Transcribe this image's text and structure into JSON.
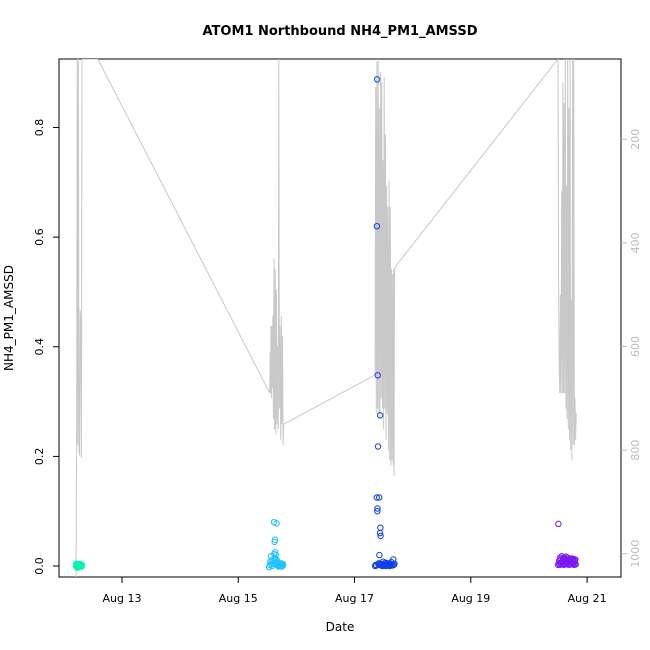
{
  "chart_data": {
    "type": "scatter",
    "title": "ATOM1 Northbound NH4_PM1_AMSSD",
    "xlabel": "Date",
    "ylabel": "NH4_PM1_AMSSD",
    "xlim": [
      "2018-08-11T22:00",
      "2018-08-21T14:00"
    ],
    "ylim": [
      -0.02,
      0.925
    ],
    "y2lim": [
      1045,
      45
    ],
    "x_ticks": [
      {
        "date": "2018-08-13T00:00",
        "label": "Aug 13"
      },
      {
        "date": "2018-08-15T00:00",
        "label": "Aug 15"
      },
      {
        "date": "2018-08-17T00:00",
        "label": "Aug 17"
      },
      {
        "date": "2018-08-19T00:00",
        "label": "Aug 19"
      },
      {
        "date": "2018-08-21T00:00",
        "label": "Aug 21"
      }
    ],
    "y_ticks": [
      "0.0",
      "0.2",
      "0.4",
      "0.6",
      "0.8"
    ],
    "y2_ticks": [
      "200",
      "400",
      "600",
      "800",
      "1000"
    ],
    "grid": false,
    "legend": "none",
    "colors": {
      "altitude_line": "#c8c8c8",
      "seg1": "#00f5b5",
      "seg2": "#1ec3ff",
      "seg3": "#1040ea",
      "seg4": "#7a18f0",
      "axis": "#000000",
      "right_axis": "#bbbbbb"
    },
    "altitude_trace": [
      [
        "2018-08-12T05:00",
        1045
      ],
      [
        "2018-08-12T05:15",
        795
      ],
      [
        "2018-08-12T05:30",
        45
      ],
      [
        "2018-08-12T05:45",
        790
      ],
      [
        "2018-08-12T06:00",
        45
      ],
      [
        "2018-08-12T06:15",
        800
      ],
      [
        "2018-08-12T06:30",
        810
      ],
      [
        "2018-08-12T06:45",
        530
      ],
      [
        "2018-08-12T07:00",
        560
      ],
      [
        "2018-08-12T07:15",
        815
      ],
      [
        "2018-08-12T07:30",
        45
      ],
      [
        "2018-08-12T07:45",
        45
      ],
      [
        "2018-08-12T14:00",
        45
      ],
      [
        "2018-08-15T13:00",
        690
      ],
      [
        "2018-08-15T13:10",
        610
      ],
      [
        "2018-08-15T13:20",
        690
      ],
      [
        "2018-08-15T13:30",
        560
      ],
      [
        "2018-08-15T13:40",
        700
      ],
      [
        "2018-08-15T13:50",
        560
      ],
      [
        "2018-08-15T14:00",
        680
      ],
      [
        "2018-08-15T14:15",
        540
      ],
      [
        "2018-08-15T14:30",
        740
      ],
      [
        "2018-08-15T14:45",
        430
      ],
      [
        "2018-08-15T15:00",
        760
      ],
      [
        "2018-08-15T15:15",
        450
      ],
      [
        "2018-08-15T15:30",
        770
      ],
      [
        "2018-08-15T15:45",
        490
      ],
      [
        "2018-08-15T16:00",
        750
      ],
      [
        "2018-08-15T16:15",
        600
      ],
      [
        "2018-08-15T16:30",
        760
      ],
      [
        "2018-08-15T16:45",
        45
      ],
      [
        "2018-08-15T17:00",
        720
      ],
      [
        "2018-08-15T17:15",
        560
      ],
      [
        "2018-08-15T17:30",
        780
      ],
      [
        "2018-08-15T17:45",
        540
      ],
      [
        "2018-08-15T18:00",
        750
      ],
      [
        "2018-08-15T18:15",
        580
      ],
      [
        "2018-08-15T18:30",
        790
      ],
      [
        "2018-08-15T18:45",
        750
      ],
      [
        "2018-08-17T08:30",
        655
      ],
      [
        "2018-08-17T08:45",
        100
      ],
      [
        "2018-08-17T09:00",
        730
      ],
      [
        "2018-08-17T09:15",
        50
      ],
      [
        "2018-08-17T09:30",
        720
      ],
      [
        "2018-08-17T09:45",
        45
      ],
      [
        "2018-08-17T10:00",
        730
      ],
      [
        "2018-08-17T10:15",
        140
      ],
      [
        "2018-08-17T10:30",
        740
      ],
      [
        "2018-08-17T10:45",
        70
      ],
      [
        "2018-08-17T11:00",
        700
      ],
      [
        "2018-08-17T11:15",
        90
      ],
      [
        "2018-08-17T11:30",
        720
      ],
      [
        "2018-08-17T11:45",
        240
      ],
      [
        "2018-08-17T12:00",
        760
      ],
      [
        "2018-08-17T12:15",
        80
      ],
      [
        "2018-08-17T12:30",
        720
      ],
      [
        "2018-08-17T12:45",
        190
      ],
      [
        "2018-08-17T13:00",
        780
      ],
      [
        "2018-08-17T13:15",
        290
      ],
      [
        "2018-08-17T13:30",
        730
      ],
      [
        "2018-08-17T13:45",
        330
      ],
      [
        "2018-08-17T14:00",
        800
      ],
      [
        "2018-08-17T14:15",
        280
      ],
      [
        "2018-08-17T14:30",
        820
      ],
      [
        "2018-08-17T14:45",
        330
      ],
      [
        "2018-08-17T15:00",
        830
      ],
      [
        "2018-08-17T15:15",
        450
      ],
      [
        "2018-08-17T15:30",
        820
      ],
      [
        "2018-08-17T15:45",
        460
      ],
      [
        "2018-08-17T16:00",
        830
      ],
      [
        "2018-08-17T16:10",
        450
      ],
      [
        "2018-08-17T16:20",
        850
      ],
      [
        "2018-08-17T16:30",
        450
      ],
      [
        "2018-08-17T17:00",
        445
      ],
      [
        "2018-08-20T12:00",
        45
      ],
      [
        "2018-08-20T12:15",
        480
      ],
      [
        "2018-08-20T12:30",
        640
      ],
      [
        "2018-08-20T12:45",
        690
      ],
      [
        "2018-08-20T13:00",
        500
      ],
      [
        "2018-08-20T13:15",
        690
      ],
      [
        "2018-08-20T13:30",
        300
      ],
      [
        "2018-08-20T13:45",
        690
      ],
      [
        "2018-08-20T14:00",
        90
      ],
      [
        "2018-08-20T14:15",
        690
      ],
      [
        "2018-08-20T14:30",
        130
      ],
      [
        "2018-08-20T14:45",
        690
      ],
      [
        "2018-08-20T15:00",
        45
      ],
      [
        "2018-08-20T15:15",
        720
      ],
      [
        "2018-08-20T15:30",
        290
      ],
      [
        "2018-08-20T15:45",
        740
      ],
      [
        "2018-08-20T16:00",
        45
      ],
      [
        "2018-08-20T16:15",
        760
      ],
      [
        "2018-08-20T16:30",
        140
      ],
      [
        "2018-08-20T16:45",
        780
      ],
      [
        "2018-08-20T17:00",
        45
      ],
      [
        "2018-08-20T17:15",
        800
      ],
      [
        "2018-08-20T17:30",
        510
      ],
      [
        "2018-08-20T17:45",
        820
      ],
      [
        "2018-08-20T18:00",
        45
      ],
      [
        "2018-08-20T18:15",
        790
      ],
      [
        "2018-08-20T18:30",
        45
      ],
      [
        "2018-08-20T18:45",
        790
      ],
      [
        "2018-08-20T19:00",
        700
      ],
      [
        "2018-08-20T19:15",
        780
      ],
      [
        "2018-08-20T19:30",
        730
      ]
    ],
    "series": [
      {
        "color": "#00f5b5",
        "points": [
          [
            "2018-08-12T05:00",
            0.0
          ],
          [
            "2018-08-12T05:10",
            0.002
          ],
          [
            "2018-08-12T05:20",
            -0.001
          ],
          [
            "2018-08-12T05:30",
            0.003
          ],
          [
            "2018-08-12T05:40",
            0.001
          ],
          [
            "2018-08-12T05:50",
            -0.002
          ],
          [
            "2018-08-12T06:00",
            0.002
          ],
          [
            "2018-08-12T06:10",
            0.0
          ],
          [
            "2018-08-12T06:20",
            0.003
          ],
          [
            "2018-08-12T06:30",
            0.001
          ],
          [
            "2018-08-12T06:40",
            -0.001
          ],
          [
            "2018-08-12T06:50",
            0.002
          ],
          [
            "2018-08-12T07:00",
            0.0
          ],
          [
            "2018-08-12T07:10",
            0.001
          ],
          [
            "2018-08-12T07:20",
            -0.001
          ],
          [
            "2018-08-12T07:30",
            0.002
          ],
          [
            "2018-08-12T05:05",
            0.004
          ],
          [
            "2018-08-12T06:45",
            0.004
          ],
          [
            "2018-08-12T05:35",
            -0.003
          ],
          [
            "2018-08-12T06:15",
            -0.002
          ]
        ]
      },
      {
        "color": "#1ec3ff",
        "points": [
          [
            "2018-08-15T12:45",
            -0.002
          ],
          [
            "2018-08-15T13:00",
            0.002
          ],
          [
            "2018-08-15T13:15",
            0.008
          ],
          [
            "2018-08-15T13:30",
            0.018
          ],
          [
            "2018-08-15T13:45",
            0.003
          ],
          [
            "2018-08-15T14:00",
            0.0
          ],
          [
            "2018-08-15T14:15",
            0.005
          ],
          [
            "2018-08-15T14:30",
            0.012
          ],
          [
            "2018-08-15T14:45",
            0.08
          ],
          [
            "2018-08-15T15:00",
            0.044
          ],
          [
            "2018-08-15T15:10",
            0.048
          ],
          [
            "2018-08-15T15:15",
            0.025
          ],
          [
            "2018-08-15T15:20",
            0.012
          ],
          [
            "2018-08-15T15:30",
            0.02
          ],
          [
            "2018-08-15T15:40",
            0.006
          ],
          [
            "2018-08-15T15:45",
            0.002
          ],
          [
            "2018-08-15T15:50",
            0.078
          ],
          [
            "2018-08-15T16:00",
            0.01
          ],
          [
            "2018-08-15T16:10",
            0.003
          ],
          [
            "2018-08-15T16:20",
            0.001
          ],
          [
            "2018-08-15T16:30",
            0.006
          ],
          [
            "2018-08-15T16:40",
            -0.001
          ],
          [
            "2018-08-15T16:50",
            0.002
          ],
          [
            "2018-08-15T17:00",
            0.004
          ],
          [
            "2018-08-15T17:10",
            0.0
          ],
          [
            "2018-08-15T17:20",
            0.003
          ],
          [
            "2018-08-15T17:30",
            0.001
          ],
          [
            "2018-08-15T17:40",
            0.005
          ],
          [
            "2018-08-15T17:50",
            -0.001
          ],
          [
            "2018-08-15T18:00",
            0.002
          ],
          [
            "2018-08-15T18:10",
            0.004
          ],
          [
            "2018-08-15T18:20",
            0.0
          ],
          [
            "2018-08-15T18:30",
            0.003
          ],
          [
            "2018-08-15T15:05",
            0.015
          ],
          [
            "2018-08-15T14:50",
            0.022
          ],
          [
            "2018-08-15T13:50",
            0.01
          ]
        ]
      },
      {
        "color": "#1040ea",
        "points": [
          [
            "2018-08-17T08:30",
            0.0
          ],
          [
            "2018-08-17T08:45",
            0.002
          ],
          [
            "2018-08-17T09:00",
            0.001
          ],
          [
            "2018-08-17T09:10",
            0.125
          ],
          [
            "2018-08-17T09:15",
            0.62
          ],
          [
            "2018-08-17T09:20",
            0.888
          ],
          [
            "2018-08-17T09:25",
            0.1
          ],
          [
            "2018-08-17T09:30",
            0.105
          ],
          [
            "2018-08-17T09:35",
            0.348
          ],
          [
            "2018-08-17T09:40",
            0.218
          ],
          [
            "2018-08-17T09:50",
            0.003
          ],
          [
            "2018-08-17T10:00",
            0.005
          ],
          [
            "2018-08-17T10:10",
            0.125
          ],
          [
            "2018-08-17T10:15",
            0.02
          ],
          [
            "2018-08-17T10:20",
            0.002
          ],
          [
            "2018-08-17T10:30",
            0.06
          ],
          [
            "2018-08-17T10:35",
            0.275
          ],
          [
            "2018-08-17T10:40",
            0.07
          ],
          [
            "2018-08-17T10:45",
            0.055
          ],
          [
            "2018-08-17T10:50",
            0.004
          ],
          [
            "2018-08-17T11:00",
            0.001
          ],
          [
            "2018-08-17T11:15",
            0.003
          ],
          [
            "2018-08-17T11:30",
            0.0
          ],
          [
            "2018-08-17T11:45",
            0.008
          ],
          [
            "2018-08-17T12:00",
            0.002
          ],
          [
            "2018-08-17T12:15",
            0.004
          ],
          [
            "2018-08-17T12:30",
            0.001
          ],
          [
            "2018-08-17T12:45",
            0.006
          ],
          [
            "2018-08-17T13:00",
            0.0
          ],
          [
            "2018-08-17T13:15",
            0.003
          ],
          [
            "2018-08-17T13:30",
            0.002
          ],
          [
            "2018-08-17T13:45",
            0.005
          ],
          [
            "2018-08-17T14:00",
            0.001
          ],
          [
            "2018-08-17T14:15",
            0.003
          ],
          [
            "2018-08-17T14:30",
            0.0
          ],
          [
            "2018-08-17T14:45",
            0.004
          ],
          [
            "2018-08-17T15:00",
            0.002
          ],
          [
            "2018-08-17T15:15",
            0.007
          ],
          [
            "2018-08-17T15:30",
            0.001
          ],
          [
            "2018-08-17T15:45",
            0.003
          ],
          [
            "2018-08-17T16:00",
            0.012
          ],
          [
            "2018-08-17T16:15",
            0.002
          ],
          [
            "2018-08-17T16:30",
            0.004
          ]
        ]
      },
      {
        "color": "#7a18f0",
        "points": [
          [
            "2018-08-20T12:00",
            0.002
          ],
          [
            "2018-08-20T12:10",
            0.077
          ],
          [
            "2018-08-20T12:20",
            0.005
          ],
          [
            "2018-08-20T12:30",
            0.01
          ],
          [
            "2018-08-20T12:40",
            0.002
          ],
          [
            "2018-08-20T12:50",
            0.015
          ],
          [
            "2018-08-20T13:00",
            0.006
          ],
          [
            "2018-08-20T13:10",
            0.012
          ],
          [
            "2018-08-20T13:20",
            0.003
          ],
          [
            "2018-08-20T13:30",
            0.018
          ],
          [
            "2018-08-20T13:40",
            0.008
          ],
          [
            "2018-08-20T13:50",
            0.004
          ],
          [
            "2018-08-20T14:00",
            0.014
          ],
          [
            "2018-08-20T14:10",
            0.007
          ],
          [
            "2018-08-20T14:20",
            0.002
          ],
          [
            "2018-08-20T14:30",
            0.016
          ],
          [
            "2018-08-20T14:40",
            0.009
          ],
          [
            "2018-08-20T14:50",
            0.005
          ],
          [
            "2018-08-20T15:00",
            0.012
          ],
          [
            "2018-08-20T15:10",
            0.003
          ],
          [
            "2018-08-20T15:20",
            0.017
          ],
          [
            "2018-08-20T15:30",
            0.008
          ],
          [
            "2018-08-20T15:40",
            0.011
          ],
          [
            "2018-08-20T15:50",
            0.004
          ],
          [
            "2018-08-20T16:00",
            0.015
          ],
          [
            "2018-08-20T16:10",
            0.006
          ],
          [
            "2018-08-20T16:20",
            0.01
          ],
          [
            "2018-08-20T16:30",
            0.002
          ],
          [
            "2018-08-20T16:40",
            0.013
          ],
          [
            "2018-08-20T16:50",
            0.007
          ],
          [
            "2018-08-20T17:00",
            0.004
          ],
          [
            "2018-08-20T17:10",
            0.012
          ],
          [
            "2018-08-20T17:20",
            0.009
          ],
          [
            "2018-08-20T17:30",
            0.003
          ],
          [
            "2018-08-20T17:40",
            0.014
          ],
          [
            "2018-08-20T17:50",
            0.006
          ],
          [
            "2018-08-20T18:00",
            0.011
          ],
          [
            "2018-08-20T18:10",
            0.004
          ],
          [
            "2018-08-20T18:20",
            0.013
          ],
          [
            "2018-08-20T18:30",
            0.008
          ],
          [
            "2018-08-20T18:40",
            0.002
          ],
          [
            "2018-08-20T18:50",
            0.01
          ],
          [
            "2018-08-20T19:00",
            0.005
          ],
          [
            "2018-08-20T19:10",
            0.012
          ],
          [
            "2018-08-20T19:20",
            0.003
          ]
        ]
      }
    ]
  }
}
